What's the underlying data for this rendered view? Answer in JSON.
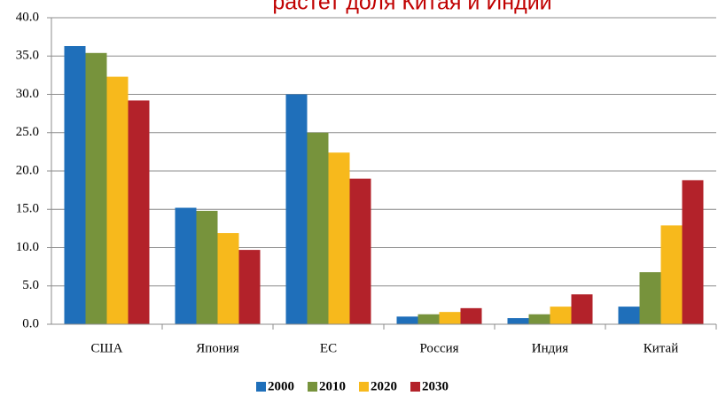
{
  "chart_data": {
    "type": "bar",
    "title": "растет доля Китая и Индии",
    "categories": [
      "США",
      "Япония",
      "ЕС",
      "Россия",
      "Индия",
      "Китай"
    ],
    "series": [
      {
        "name": "2000",
        "color": "#1f6fba",
        "values": [
          36.3,
          15.2,
          30.0,
          1.0,
          0.8,
          2.3
        ]
      },
      {
        "name": "2010",
        "color": "#77933c",
        "values": [
          35.4,
          14.8,
          25.0,
          1.3,
          1.3,
          6.8
        ]
      },
      {
        "name": "2020",
        "color": "#f7b91c",
        "values": [
          32.3,
          11.9,
          22.4,
          1.6,
          2.3,
          12.9
        ]
      },
      {
        "name": "2030",
        "color": "#b3222a",
        "values": [
          29.2,
          9.7,
          19.0,
          2.1,
          3.9,
          18.8
        ]
      }
    ],
    "ylim": [
      0,
      40
    ],
    "yticks": [
      {
        "value": 0,
        "label": "0.0"
      },
      {
        "value": 5,
        "label": "5.0"
      },
      {
        "value": 10,
        "label": "10.0"
      },
      {
        "value": 15,
        "label": "15.0"
      },
      {
        "value": 20,
        "label": "20.0"
      },
      {
        "value": 25,
        "label": "25.0"
      },
      {
        "value": 30,
        "label": "30.0"
      },
      {
        "value": 35,
        "label": "35.0"
      },
      {
        "value": 40,
        "label": "40.0"
      }
    ],
    "grid": true,
    "legend": "bottom"
  }
}
